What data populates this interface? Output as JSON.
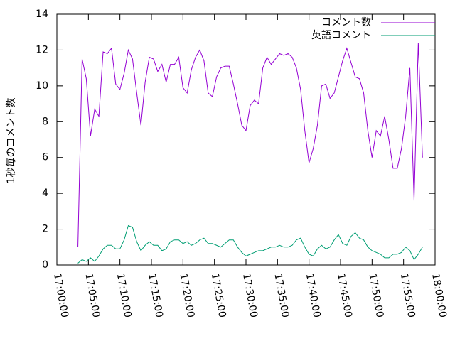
{
  "chart_data": {
    "type": "line",
    "ylabel": "1秒毎のコメント数",
    "x": [
      "17:03:20",
      "17:04:00",
      "17:04:40",
      "17:05:20",
      "17:06:00",
      "17:06:40",
      "17:07:20",
      "17:08:00",
      "17:08:40",
      "17:09:20",
      "17:10:00",
      "17:10:40",
      "17:11:20",
      "17:12:00",
      "17:12:40",
      "17:13:20",
      "17:14:00",
      "17:14:40",
      "17:15:20",
      "17:16:00",
      "17:16:40",
      "17:17:20",
      "17:18:00",
      "17:18:40",
      "17:19:20",
      "17:20:00",
      "17:20:40",
      "17:21:20",
      "17:22:00",
      "17:22:40",
      "17:23:20",
      "17:24:00",
      "17:24:40",
      "17:25:20",
      "17:26:00",
      "17:26:40",
      "17:27:20",
      "17:28:00",
      "17:28:40",
      "17:29:20",
      "17:30:00",
      "17:30:40",
      "17:31:20",
      "17:32:00",
      "17:32:40",
      "17:33:20",
      "17:34:00",
      "17:34:40",
      "17:35:20",
      "17:36:00",
      "17:36:40",
      "17:37:20",
      "17:38:00",
      "17:38:40",
      "17:39:20",
      "17:40:00",
      "17:40:40",
      "17:41:20",
      "17:42:00",
      "17:42:40",
      "17:43:20",
      "17:44:00",
      "17:44:40",
      "17:45:20",
      "17:46:00",
      "17:46:40",
      "17:47:20",
      "17:48:00",
      "17:48:40",
      "17:49:20",
      "17:50:00",
      "17:50:40",
      "17:51:20",
      "17:52:00",
      "17:52:40",
      "17:53:20",
      "17:54:00",
      "17:54:40",
      "17:55:20",
      "17:56:00",
      "17:56:40",
      "17:57:20",
      "17:58:00"
    ],
    "series": [
      {
        "name": "コメント数",
        "color": "#9400d3",
        "values": [
          1.0,
          11.5,
          10.4,
          7.2,
          8.7,
          8.3,
          11.9,
          11.8,
          12.1,
          10.1,
          9.8,
          10.7,
          12.0,
          11.5,
          9.6,
          7.8,
          10.2,
          11.6,
          11.5,
          10.8,
          11.2,
          10.2,
          11.2,
          11.2,
          11.6,
          9.9,
          9.6,
          10.9,
          11.6,
          12.0,
          11.4,
          9.6,
          9.4,
          10.5,
          11.0,
          11.1,
          11.1,
          10.1,
          9.0,
          7.8,
          7.5,
          8.9,
          9.2,
          9.0,
          11.0,
          11.6,
          11.2,
          11.5,
          11.8,
          11.7,
          11.8,
          11.6,
          11.0,
          9.8,
          7.5,
          5.7,
          6.5,
          7.8,
          10.0,
          10.1,
          9.3,
          9.6,
          10.5,
          11.4,
          12.1,
          11.3,
          10.5,
          10.4,
          9.6,
          7.5,
          6.0,
          7.5,
          7.2,
          8.3,
          7.0,
          5.4,
          5.4,
          6.5,
          8.3,
          11.0,
          3.6,
          12.4,
          6.0
        ]
      },
      {
        "name": "英語コメント",
        "color": "#009e73",
        "values": [
          0.1,
          0.3,
          0.2,
          0.4,
          0.2,
          0.5,
          0.9,
          1.1,
          1.1,
          0.9,
          0.9,
          1.4,
          2.2,
          2.1,
          1.3,
          0.8,
          1.1,
          1.3,
          1.1,
          1.1,
          0.8,
          0.9,
          1.3,
          1.4,
          1.4,
          1.2,
          1.3,
          1.1,
          1.2,
          1.4,
          1.5,
          1.2,
          1.2,
          1.1,
          1.0,
          1.2,
          1.4,
          1.4,
          1.0,
          0.7,
          0.5,
          0.6,
          0.7,
          0.8,
          0.8,
          0.9,
          1.0,
          1.0,
          1.1,
          1.0,
          1.0,
          1.1,
          1.4,
          1.5,
          1.0,
          0.6,
          0.5,
          0.9,
          1.1,
          0.9,
          1.0,
          1.4,
          1.7,
          1.2,
          1.1,
          1.6,
          1.8,
          1.5,
          1.4,
          1.0,
          0.8,
          0.7,
          0.6,
          0.4,
          0.4,
          0.6,
          0.6,
          0.7,
          1.0,
          0.8,
          0.3,
          0.6,
          1.0
        ]
      }
    ],
    "xlim": [
      "17:00:00",
      "18:00:00"
    ],
    "xticks": [
      "17:00:00",
      "17:05:00",
      "17:10:00",
      "17:15:00",
      "17:20:00",
      "17:25:00",
      "17:30:00",
      "17:35:00",
      "17:40:00",
      "17:45:00",
      "17:50:00",
      "17:55:00",
      "18:00:00"
    ],
    "ylim": [
      0,
      14
    ],
    "yticks": [
      0,
      2,
      4,
      6,
      8,
      10,
      12,
      14
    ],
    "legend": "top-right"
  }
}
